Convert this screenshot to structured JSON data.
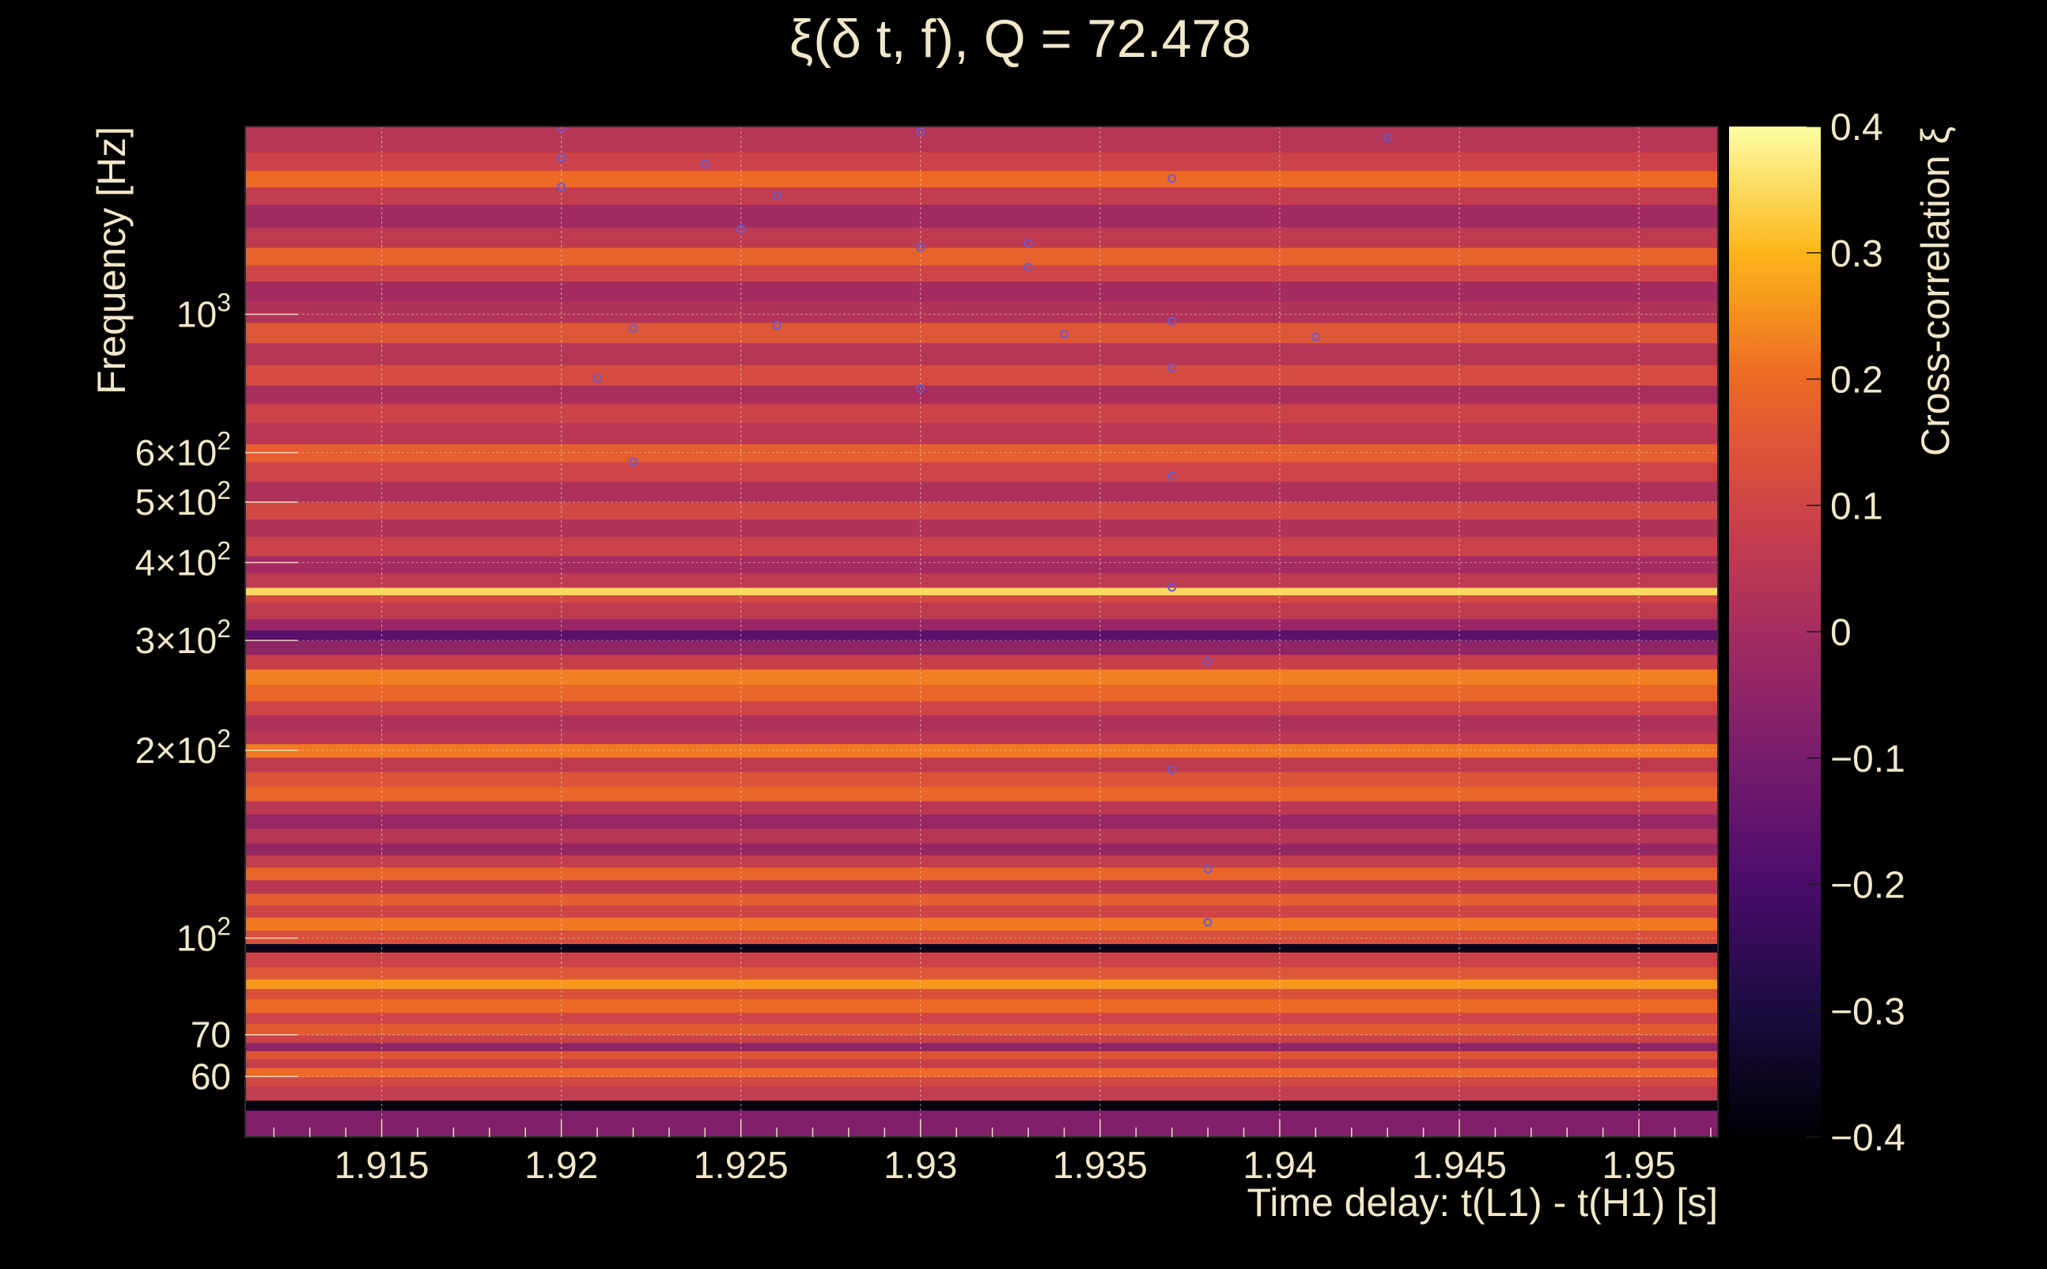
{
  "chart_data": {
    "type": "heatmap",
    "title": "ξ(δ t, f), Q = 72.478",
    "xlabel": "Time delay: t(L1) - t(H1) [s]",
    "ylabel": "Frequency [Hz]",
    "colorbar_label": "Cross-correlation ξ",
    "colormap": "inferno",
    "xlim": [
      1.9112,
      1.9522
    ],
    "ylim": [
      48,
      2000
    ],
    "y_scale": "log",
    "clim": [
      -0.4,
      0.4
    ],
    "grid": true,
    "x_ticks": [
      {
        "value": 1.915,
        "label": "1.915"
      },
      {
        "value": 1.92,
        "label": "1.92"
      },
      {
        "value": 1.925,
        "label": "1.925"
      },
      {
        "value": 1.93,
        "label": "1.93"
      },
      {
        "value": 1.935,
        "label": "1.935"
      },
      {
        "value": 1.94,
        "label": "1.94"
      },
      {
        "value": 1.945,
        "label": "1.945"
      },
      {
        "value": 1.95,
        "label": "1.95"
      }
    ],
    "y_ticks": [
      {
        "value": 60,
        "label": "60"
      },
      {
        "value": 70,
        "label": "70"
      },
      {
        "value": 100,
        "base": "10",
        "exp": "2"
      },
      {
        "value": 200,
        "base": "2×10",
        "exp": "2"
      },
      {
        "value": 300,
        "base": "3×10",
        "exp": "2"
      },
      {
        "value": 400,
        "base": "4×10",
        "exp": "2"
      },
      {
        "value": 500,
        "base": "5×10",
        "exp": "2"
      },
      {
        "value": 600,
        "base": "6×10",
        "exp": "2"
      },
      {
        "value": 1000,
        "base": "10",
        "exp": "3"
      }
    ],
    "colorbar_ticks": [
      {
        "value": 0.4,
        "label": "0.4"
      },
      {
        "value": 0.3,
        "label": "0.3"
      },
      {
        "value": 0.2,
        "label": "0.2"
      },
      {
        "value": 0.1,
        "label": "0.1"
      },
      {
        "value": 0,
        "label": "0"
      },
      {
        "value": -0.1,
        "label": "−0.1"
      },
      {
        "value": -0.2,
        "label": "−0.2"
      },
      {
        "value": -0.3,
        "label": "−0.3"
      },
      {
        "value": -0.4,
        "label": "−0.4"
      }
    ],
    "bands": [
      {
        "f": [
          48,
          53
        ],
        "xi": -0.08
      },
      {
        "f": [
          53,
          55
        ],
        "xi": -0.38
      },
      {
        "f": [
          55,
          58
        ],
        "xi": 0.07
      },
      {
        "f": [
          58,
          60
        ],
        "xi": 0.11
      },
      {
        "f": [
          60,
          62
        ],
        "xi": 0.2
      },
      {
        "f": [
          62,
          64
        ],
        "xi": 0.08
      },
      {
        "f": [
          64,
          66
        ],
        "xi": 0.14
      },
      {
        "f": [
          66,
          68
        ],
        "xi": -0.05
      },
      {
        "f": [
          68,
          70
        ],
        "xi": 0.09
      },
      {
        "f": [
          70,
          73
        ],
        "xi": 0.16
      },
      {
        "f": [
          73,
          76
        ],
        "xi": 0.1
      },
      {
        "f": [
          76,
          80
        ],
        "xi": 0.2
      },
      {
        "f": [
          80,
          83
        ],
        "xi": 0.13
      },
      {
        "f": [
          83,
          86
        ],
        "xi": 0.26
      },
      {
        "f": [
          86,
          90
        ],
        "xi": 0.15
      },
      {
        "f": [
          90,
          95
        ],
        "xi": 0.09
      },
      {
        "f": [
          95,
          98
        ],
        "xi": -0.36
      },
      {
        "f": [
          98,
          103
        ],
        "xi": 0.13
      },
      {
        "f": [
          103,
          108
        ],
        "xi": 0.22
      },
      {
        "f": [
          108,
          113
        ],
        "xi": 0.1
      },
      {
        "f": [
          113,
          118
        ],
        "xi": 0.17
      },
      {
        "f": [
          118,
          124
        ],
        "xi": 0.05
      },
      {
        "f": [
          124,
          130
        ],
        "xi": 0.19
      },
      {
        "f": [
          130,
          136
        ],
        "xi": 0.07
      },
      {
        "f": [
          136,
          142
        ],
        "xi": -0.04
      },
      {
        "f": [
          142,
          150
        ],
        "xi": 0.04
      },
      {
        "f": [
          150,
          158
        ],
        "xi": -0.03
      },
      {
        "f": [
          158,
          166
        ],
        "xi": 0.05
      },
      {
        "f": [
          166,
          175
        ],
        "xi": 0.19
      },
      {
        "f": [
          175,
          185
        ],
        "xi": 0.14
      },
      {
        "f": [
          185,
          195
        ],
        "xi": 0.06
      },
      {
        "f": [
          195,
          205
        ],
        "xi": 0.22
      },
      {
        "f": [
          205,
          215
        ],
        "xi": 0.05
      },
      {
        "f": [
          215,
          228
        ],
        "xi": 0.02
      },
      {
        "f": [
          228,
          240
        ],
        "xi": 0.1
      },
      {
        "f": [
          240,
          255
        ],
        "xi": 0.19
      },
      {
        "f": [
          255,
          270
        ],
        "xi": 0.23
      },
      {
        "f": [
          270,
          285
        ],
        "xi": 0.08
      },
      {
        "f": [
          285,
          300
        ],
        "xi": -0.05
      },
      {
        "f": [
          300,
          312
        ],
        "xi": -0.17
      },
      {
        "f": [
          312,
          325
        ],
        "xi": -0.03
      },
      {
        "f": [
          325,
          345
        ],
        "xi": 0.06
      },
      {
        "f": [
          345,
          355
        ],
        "xi": 0.11
      },
      {
        "f": [
          355,
          365
        ],
        "xi": 0.35
      },
      {
        "f": [
          365,
          385
        ],
        "xi": 0.06
      },
      {
        "f": [
          385,
          410
        ],
        "xi": 0.0
      },
      {
        "f": [
          410,
          440
        ],
        "xi": 0.09
      },
      {
        "f": [
          440,
          470
        ],
        "xi": 0.03
      },
      {
        "f": [
          470,
          500
        ],
        "xi": 0.11
      },
      {
        "f": [
          500,
          540
        ],
        "xi": 0.02
      },
      {
        "f": [
          540,
          580
        ],
        "xi": 0.1
      },
      {
        "f": [
          580,
          620
        ],
        "xi": 0.17
      },
      {
        "f": [
          620,
          670
        ],
        "xi": 0.05
      },
      {
        "f": [
          670,
          720
        ],
        "xi": 0.09
      },
      {
        "f": [
          720,
          770
        ],
        "xi": 0.01
      },
      {
        "f": [
          770,
          830
        ],
        "xi": 0.12
      },
      {
        "f": [
          830,
          900
        ],
        "xi": 0.04
      },
      {
        "f": [
          900,
          970
        ],
        "xi": 0.15
      },
      {
        "f": [
          970,
          1050
        ],
        "xi": 0.03
      },
      {
        "f": [
          1050,
          1130
        ],
        "xi": 0.0
      },
      {
        "f": [
          1130,
          1200
        ],
        "xi": 0.1
      },
      {
        "f": [
          1200,
          1280
        ],
        "xi": 0.18
      },
      {
        "f": [
          1280,
          1380
        ],
        "xi": 0.06
      },
      {
        "f": [
          1380,
          1500
        ],
        "xi": -0.01
      },
      {
        "f": [
          1500,
          1600
        ],
        "xi": 0.07
      },
      {
        "f": [
          1600,
          1700
        ],
        "xi": 0.2
      },
      {
        "f": [
          1700,
          1820
        ],
        "xi": 0.09
      },
      {
        "f": [
          1820,
          2000
        ],
        "xi": 0.04
      }
    ],
    "markers": [
      {
        "t": 1.92,
        "f": 1990
      },
      {
        "t": 1.92,
        "f": 1780
      },
      {
        "t": 1.92,
        "f": 1600
      },
      {
        "t": 1.924,
        "f": 1740
      },
      {
        "t": 1.926,
        "f": 1550
      },
      {
        "t": 1.925,
        "f": 1370
      },
      {
        "t": 1.93,
        "f": 1960
      },
      {
        "t": 1.93,
        "f": 1280
      },
      {
        "t": 1.933,
        "f": 1300
      },
      {
        "t": 1.933,
        "f": 1190
      },
      {
        "t": 1.937,
        "f": 1650
      },
      {
        "t": 1.943,
        "f": 1920
      },
      {
        "t": 1.922,
        "f": 950
      },
      {
        "t": 1.926,
        "f": 960
      },
      {
        "t": 1.934,
        "f": 930
      },
      {
        "t": 1.937,
        "f": 975
      },
      {
        "t": 1.941,
        "f": 920
      },
      {
        "t": 1.921,
        "f": 790
      },
      {
        "t": 1.93,
        "f": 760
      },
      {
        "t": 1.937,
        "f": 820
      },
      {
        "t": 1.922,
        "f": 580
      },
      {
        "t": 1.937,
        "f": 550
      },
      {
        "t": 1.937,
        "f": 365
      },
      {
        "t": 1.938,
        "f": 278
      },
      {
        "t": 1.937,
        "f": 186
      },
      {
        "t": 1.938,
        "f": 129
      },
      {
        "t": 1.938,
        "f": 106
      }
    ]
  }
}
